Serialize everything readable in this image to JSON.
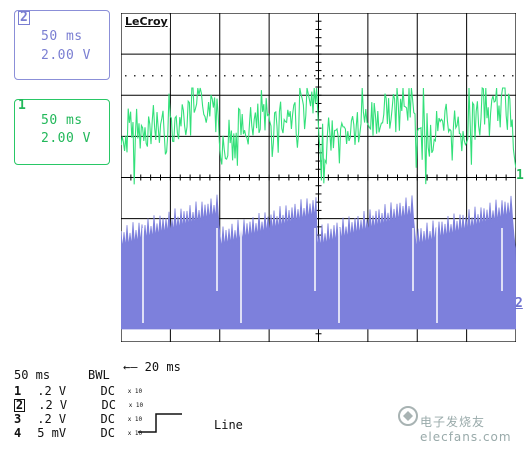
{
  "ch2_box": {
    "number": "2",
    "timebase": "50 ms",
    "volts": "2.00 V"
  },
  "ch1_box": {
    "number": "1",
    "timebase": "50 ms",
    "volts": "2.00 V"
  },
  "scope": {
    "brand": "LeCroy",
    "ch1_marker": "1",
    "ch2_marker": "2",
    "timebase_arrow": "←— 20 ms",
    "colors": {
      "ch1": "#33e07a",
      "ch2": "#7d80dc",
      "grid": "#000000"
    }
  },
  "bottom": {
    "timebase": "50 ms",
    "bwl": "BWL",
    "channels": [
      {
        "ch": "1",
        "scale": ".2  V",
        "coupling": "DC",
        "bw": "x 10"
      },
      {
        "ch": "2",
        "scale": ".2  V",
        "coupling": "DC",
        "bw": "x 10"
      },
      {
        "ch": "3",
        "scale": ".2  V",
        "coupling": "DC",
        "bw": "x 10"
      },
      {
        "ch": "4",
        "scale": "5 mV",
        "coupling": "DC",
        "bw": "x 10"
      }
    ],
    "trigger_source": "Line"
  },
  "watermark": "电子发烧友 elecfans.com"
}
